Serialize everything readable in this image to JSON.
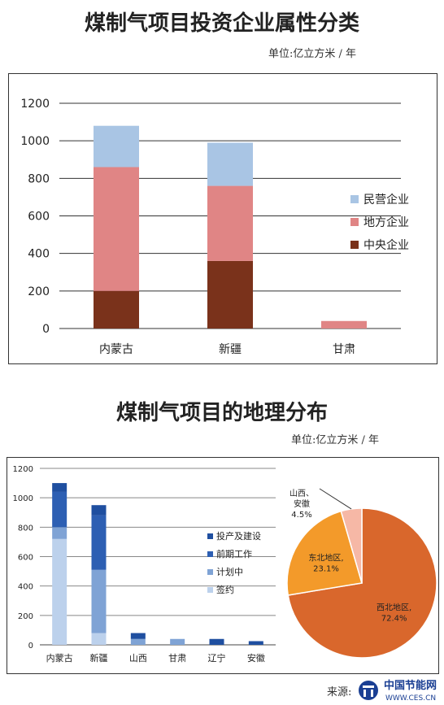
{
  "page": {
    "title1": "煤制气项目投资企业属性分类",
    "unit1": "单位:亿立方米 / 年",
    "title2": "煤制气项目的地理分布",
    "unit2": "单位:亿立方米 / 年",
    "source": "来源:",
    "logo_cn": "中国节能网",
    "logo_en": "WWW.CES.CN"
  },
  "colors": {
    "minying": "#a9c5e4",
    "difang": "#e08585",
    "zhongyang": "#7a321b",
    "touchan": "#1f4fa0",
    "qianqi": "#2d5fb3",
    "jihua": "#7fa3d5",
    "qianyue": "#bcd1ec",
    "northwest": "#d9672c",
    "northeast": "#f39a2a",
    "other": "#f6b8a6"
  },
  "chart_data": [
    {
      "type": "bar",
      "stacked": true,
      "categories": [
        "内蒙古",
        "新疆",
        "甘肃"
      ],
      "series": [
        {
          "name": "中央企业",
          "values": [
            200,
            360,
            0
          ]
        },
        {
          "name": "地方企业",
          "values": [
            660,
            400,
            40
          ]
        },
        {
          "name": "民营企业",
          "values": [
            220,
            230,
            0
          ]
        }
      ],
      "legend_order": [
        "民营企业",
        "地方企业",
        "中央企业"
      ],
      "yticks": [
        0,
        200,
        400,
        600,
        800,
        1000,
        1200
      ],
      "ylim": [
        0,
        1200
      ],
      "legend": "right",
      "grid": true
    },
    {
      "type": "bar",
      "stacked": true,
      "categories": [
        "内蒙古",
        "新疆",
        "山西",
        "甘肃",
        "辽宁",
        "安徽"
      ],
      "series": [
        {
          "name": "签约",
          "values": [
            720,
            80,
            0,
            0,
            0,
            0
          ]
        },
        {
          "name": "计划中",
          "values": [
            80,
            430,
            40,
            40,
            0,
            0
          ]
        },
        {
          "name": "前期工作",
          "values": [
            240,
            370,
            0,
            0,
            0,
            0
          ]
        },
        {
          "name": "投产及建设",
          "values": [
            60,
            70,
            40,
            0,
            40,
            25
          ]
        }
      ],
      "legend_order": [
        "投产及建设",
        "前期工作",
        "计划中",
        "签约"
      ],
      "yticks": [
        0,
        200,
        400,
        600,
        800,
        1000,
        1200
      ],
      "ylim": [
        0,
        1200
      ],
      "legend": "right",
      "grid": true
    },
    {
      "type": "pie",
      "slices": [
        {
          "label": "西北地区,",
          "pct_text": "72.4%",
          "value": 72.4
        },
        {
          "label": "东北地区,",
          "pct_text": "23.1%",
          "value": 23.1
        },
        {
          "label": "山西、安徽",
          "pct_text": "4.5%",
          "value": 4.5
        }
      ]
    }
  ]
}
